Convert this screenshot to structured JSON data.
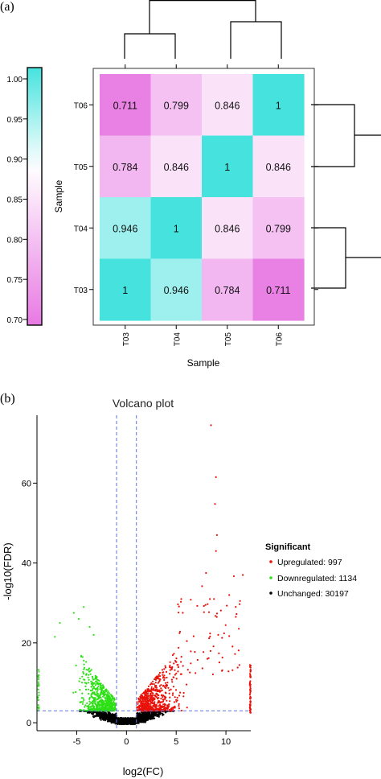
{
  "panel_a": {
    "label": "(a)",
    "colorbar": {
      "ticks": [
        "1.00",
        "0.95",
        "0.90",
        "0.85",
        "0.80",
        "0.75",
        "0.70"
      ],
      "low_color": "#e879e3",
      "mid_color": "#ffffff",
      "high_color": "#46e3de"
    }
  },
  "panel_b": {
    "label": "(b)",
    "legend_title": "Significant",
    "legend": [
      {
        "text": "Upregulated: 997",
        "color": "#e8120a"
      },
      {
        "text": "Downregulated: 1134",
        "color": "#2ee016"
      },
      {
        "text": "Unchanged: 30197",
        "color": "#000000"
      }
    ]
  },
  "chart_data": [
    {
      "type": "heatmap",
      "title": "",
      "xlabel": "Sample",
      "ylabel": "Sample",
      "x_categories": [
        "T03",
        "T04",
        "T05",
        "T06"
      ],
      "y_categories": [
        "T06",
        "T05",
        "T04",
        "T03"
      ],
      "values": [
        [
          0.711,
          0.799,
          0.846,
          1
        ],
        [
          0.784,
          0.846,
          1,
          0.846
        ],
        [
          0.946,
          1,
          0.846,
          0.799
        ],
        [
          1,
          0.946,
          0.784,
          0.711
        ]
      ],
      "cell_labels": [
        [
          "0.711",
          "0.799",
          "0.846",
          "1"
        ],
        [
          "0.784",
          "0.846",
          "1",
          "0.846"
        ],
        [
          "0.946",
          "1",
          "0.846",
          "0.799"
        ],
        [
          "1",
          "0.946",
          "0.784",
          "0.711"
        ]
      ],
      "color_range": [
        0.7,
        1.0
      ],
      "dendrograms": "top and right"
    },
    {
      "type": "scatter",
      "title": "Volcano plot",
      "xlabel": "log2(FC)",
      "ylabel": "-log10(FDR)",
      "xlim": [
        -9,
        12.5
      ],
      "ylim": [
        -2,
        77
      ],
      "x_ticks": [
        "-5",
        "0",
        "5",
        "10"
      ],
      "y_ticks": [
        "0",
        "20",
        "40",
        "60"
      ],
      "thresholds": {
        "log2fc": [
          -1,
          1
        ],
        "neg_log10_fdr": 3
      },
      "series": [
        {
          "name": "Upregulated: 997",
          "color": "#e8120a",
          "count": 997,
          "highlighted_points": [
            [
              8.5,
              74.5
            ],
            [
              9.0,
              61.5
            ],
            [
              8.9,
              54.8
            ],
            [
              9.1,
              47
            ],
            [
              9.0,
              43
            ],
            [
              8.0,
              37.5
            ],
            [
              10.8,
              36.7
            ],
            [
              11.7,
              37
            ],
            [
              7.6,
              34.2
            ],
            [
              8.8,
              31
            ]
          ]
        },
        {
          "name": "Downregulated: 1134",
          "color": "#2ee016",
          "count": 1134,
          "highlighted_points": [
            [
              -4.3,
              29
            ],
            [
              -5.3,
              27.5
            ],
            [
              -6.7,
              25
            ],
            [
              -4.8,
              26
            ],
            [
              -3.7,
              24
            ],
            [
              -7.2,
              21.5
            ],
            [
              -3.3,
              22
            ]
          ]
        },
        {
          "name": "Unchanged: 30197",
          "color": "#000000",
          "count": 30197
        }
      ]
    }
  ]
}
